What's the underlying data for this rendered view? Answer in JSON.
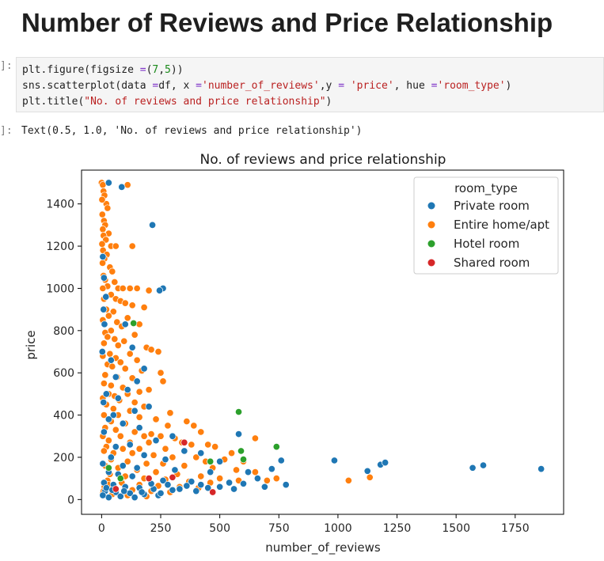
{
  "page": {
    "heading": "Number of Reviews and Price Relationship",
    "code_prompt": "]:",
    "output_prompt": "]:",
    "code_lines": [
      [
        [
          "plt",
          "name"
        ],
        [
          ".",
          "name"
        ],
        [
          "figure",
          "name"
        ],
        [
          "(figsize ",
          "name"
        ],
        [
          "=",
          "kw"
        ],
        [
          "(",
          "name"
        ],
        [
          "7",
          "num"
        ],
        [
          ",",
          "name"
        ],
        [
          "5",
          "num"
        ],
        [
          "))",
          "name"
        ]
      ],
      [
        [
          "sns",
          "name"
        ],
        [
          ".",
          "name"
        ],
        [
          "scatterplot",
          "name"
        ],
        [
          "(data ",
          "name"
        ],
        [
          "=",
          "kw"
        ],
        [
          "df, x ",
          "name"
        ],
        [
          "=",
          "kw"
        ],
        [
          "'number_of_reviews'",
          "str"
        ],
        [
          ",y ",
          "name"
        ],
        [
          "=",
          "kw"
        ],
        [
          " ",
          "name"
        ],
        [
          "'price'",
          "str"
        ],
        [
          ", hue ",
          "name"
        ],
        [
          "=",
          "kw"
        ],
        [
          "'room_type'",
          "str"
        ],
        [
          ")",
          "name"
        ]
      ],
      [
        [
          "plt",
          "name"
        ],
        [
          ".",
          "name"
        ],
        [
          "title",
          "name"
        ],
        [
          "(",
          "name"
        ],
        [
          "\"No. of reviews and price relationship\"",
          "str"
        ],
        [
          ")",
          "name"
        ]
      ]
    ],
    "output_text": "Text(0.5, 1.0, 'No. of reviews and price relationship')"
  },
  "chart_data": {
    "type": "scatter",
    "title": "No. of reviews and price relationship",
    "xlabel": "number_of_reviews",
    "ylabel": "price",
    "xlim": [
      -85,
      1955
    ],
    "ylim": [
      -70,
      1560
    ],
    "xticks": [
      0,
      250,
      500,
      750,
      1000,
      1250,
      1500,
      1750
    ],
    "yticks": [
      0,
      200,
      400,
      600,
      800,
      1000,
      1200,
      1400
    ],
    "grid": false,
    "legend": {
      "title": "room_type",
      "placement": "top-right",
      "entries": [
        "Private room",
        "Entire home/apt",
        "Hotel room",
        "Shared room"
      ]
    },
    "colors": {
      "Private room": "#1f77b4",
      "Entire home/apt": "#ff7f0e",
      "Hotel room": "#2ca02c",
      "Shared room": "#d62728"
    },
    "series": [
      {
        "name": "Entire home/apt",
        "points": [
          [
            0,
            1500
          ],
          [
            5,
            1490
          ],
          [
            8,
            1460
          ],
          [
            12,
            1440
          ],
          [
            20,
            1400
          ],
          [
            2,
            1420
          ],
          [
            25,
            1380
          ],
          [
            3,
            1350
          ],
          [
            10,
            1320
          ],
          [
            15,
            1300
          ],
          [
            5,
            1280
          ],
          [
            30,
            1260
          ],
          [
            8,
            1250
          ],
          [
            18,
            1230
          ],
          [
            2,
            1210
          ],
          [
            40,
            1200
          ],
          [
            60,
            1200
          ],
          [
            130,
            1200
          ],
          [
            110,
            1490
          ],
          [
            6,
            1180
          ],
          [
            22,
            1160
          ],
          [
            12,
            1140
          ],
          [
            4,
            1120
          ],
          [
            35,
            1100
          ],
          [
            45,
            1080
          ],
          [
            8,
            1060
          ],
          [
            15,
            1040
          ],
          [
            55,
            1030
          ],
          [
            25,
            1010
          ],
          [
            5,
            1000
          ],
          [
            70,
            1000
          ],
          [
            90,
            1000
          ],
          [
            120,
            1000
          ],
          [
            150,
            1000
          ],
          [
            200,
            990
          ],
          [
            40,
            970
          ],
          [
            10,
            950
          ],
          [
            60,
            950
          ],
          [
            80,
            940
          ],
          [
            100,
            930
          ],
          [
            130,
            920
          ],
          [
            180,
            910
          ],
          [
            20,
            900
          ],
          [
            50,
            890
          ],
          [
            30,
            870
          ],
          [
            110,
            860
          ],
          [
            5,
            850
          ],
          [
            65,
            840
          ],
          [
            160,
            830
          ],
          [
            85,
            820
          ],
          [
            40,
            800
          ],
          [
            15,
            790
          ],
          [
            140,
            780
          ],
          [
            25,
            770
          ],
          [
            55,
            760
          ],
          [
            95,
            750
          ],
          [
            10,
            740
          ],
          [
            70,
            730
          ],
          [
            190,
            720
          ],
          [
            210,
            710
          ],
          [
            240,
            700
          ],
          [
            35,
            690
          ],
          [
            120,
            690
          ],
          [
            5,
            680
          ],
          [
            60,
            670
          ],
          [
            150,
            660
          ],
          [
            80,
            650
          ],
          [
            25,
            640
          ],
          [
            45,
            630
          ],
          [
            100,
            620
          ],
          [
            170,
            610
          ],
          [
            250,
            600
          ],
          [
            15,
            590
          ],
          [
            65,
            580
          ],
          [
            130,
            575
          ],
          [
            260,
            560
          ],
          [
            10,
            550
          ],
          [
            40,
            540
          ],
          [
            90,
            530
          ],
          [
            200,
            520
          ],
          [
            160,
            510
          ],
          [
            30,
            500
          ],
          [
            110,
            500
          ],
          [
            55,
            490
          ],
          [
            5,
            480
          ],
          [
            75,
            470
          ],
          [
            140,
            460
          ],
          [
            20,
            450
          ],
          [
            180,
            440
          ],
          [
            50,
            430
          ],
          [
            120,
            420
          ],
          [
            290,
            410
          ],
          [
            10,
            400
          ],
          [
            70,
            400
          ],
          [
            160,
            390
          ],
          [
            230,
            380
          ],
          [
            40,
            370
          ],
          [
            100,
            360
          ],
          [
            280,
            350
          ],
          [
            360,
            370
          ],
          [
            390,
            350
          ],
          [
            15,
            340
          ],
          [
            60,
            330
          ],
          [
            140,
            320
          ],
          [
            210,
            310
          ],
          [
            420,
            320
          ],
          [
            5,
            300
          ],
          [
            80,
            300
          ],
          [
            180,
            300
          ],
          [
            250,
            300
          ],
          [
            310,
            290
          ],
          [
            450,
            260
          ],
          [
            650,
            290
          ],
          [
            30,
            280
          ],
          [
            120,
            270
          ],
          [
            200,
            270
          ],
          [
            340,
            270
          ],
          [
            380,
            260
          ],
          [
            20,
            250
          ],
          [
            90,
            240
          ],
          [
            160,
            240
          ],
          [
            270,
            240
          ],
          [
            480,
            250
          ],
          [
            550,
            220
          ],
          [
            10,
            230
          ],
          [
            50,
            220
          ],
          [
            130,
            220
          ],
          [
            220,
            210
          ],
          [
            300,
            200
          ],
          [
            400,
            200
          ],
          [
            440,
            180
          ],
          [
            520,
            190
          ],
          [
            600,
            180
          ],
          [
            40,
            190
          ],
          [
            110,
            180
          ],
          [
            190,
            170
          ],
          [
            260,
            170
          ],
          [
            350,
            160
          ],
          [
            470,
            150
          ],
          [
            570,
            140
          ],
          [
            650,
            130
          ],
          [
            15,
            160
          ],
          [
            70,
            150
          ],
          [
            150,
            140
          ],
          [
            230,
            130
          ],
          [
            320,
            120
          ],
          [
            420,
            110
          ],
          [
            500,
            100
          ],
          [
            580,
            90
          ],
          [
            700,
            90
          ],
          [
            740,
            100
          ],
          [
            1045,
            90
          ],
          [
            1135,
            105
          ],
          [
            35,
            120
          ],
          [
            100,
            110
          ],
          [
            180,
            100
          ],
          [
            270,
            95
          ],
          [
            370,
            85
          ],
          [
            460,
            80
          ],
          [
            25,
            90
          ],
          [
            85,
            80
          ],
          [
            160,
            70
          ],
          [
            240,
            65
          ],
          [
            330,
            60
          ],
          [
            410,
            55
          ],
          [
            12,
            60
          ],
          [
            60,
            50
          ],
          [
            130,
            45
          ],
          [
            210,
            40
          ],
          [
            290,
            35
          ],
          [
            5,
            30
          ],
          [
            45,
            25
          ],
          [
            110,
            20
          ],
          [
            190,
            15
          ],
          [
            8,
            40
          ],
          [
            28,
            70
          ]
        ]
      },
      {
        "name": "Private room",
        "points": [
          [
            30,
            1500
          ],
          [
            85,
            1480
          ],
          [
            215,
            1300
          ],
          [
            260,
            1000
          ],
          [
            245,
            990
          ],
          [
            5,
            1150
          ],
          [
            10,
            1050
          ],
          [
            18,
            960
          ],
          [
            8,
            900
          ],
          [
            12,
            830
          ],
          [
            100,
            830
          ],
          [
            130,
            720
          ],
          [
            3,
            700
          ],
          [
            40,
            660
          ],
          [
            180,
            620
          ],
          [
            60,
            580
          ],
          [
            150,
            560
          ],
          [
            110,
            520
          ],
          [
            20,
            500
          ],
          [
            70,
            480
          ],
          [
            8,
            460
          ],
          [
            200,
            440
          ],
          [
            140,
            420
          ],
          [
            50,
            400
          ],
          [
            30,
            380
          ],
          [
            90,
            360
          ],
          [
            160,
            340
          ],
          [
            10,
            320
          ],
          [
            300,
            300
          ],
          [
            230,
            280
          ],
          [
            580,
            310
          ],
          [
            120,
            260
          ],
          [
            60,
            250
          ],
          [
            350,
            230
          ],
          [
            420,
            220
          ],
          [
            180,
            210
          ],
          [
            40,
            200
          ],
          [
            270,
            190
          ],
          [
            500,
            180
          ],
          [
            760,
            185
          ],
          [
            985,
            185
          ],
          [
            1180,
            165
          ],
          [
            1200,
            175
          ],
          [
            5,
            170
          ],
          [
            90,
            160
          ],
          [
            150,
            150
          ],
          [
            310,
            140
          ],
          [
            460,
            130
          ],
          [
            620,
            130
          ],
          [
            660,
            100
          ],
          [
            720,
            145
          ],
          [
            1125,
            135
          ],
          [
            1570,
            150
          ],
          [
            1615,
            162
          ],
          [
            1860,
            145
          ],
          [
            30,
            130
          ],
          [
            70,
            120
          ],
          [
            130,
            110
          ],
          [
            200,
            100
          ],
          [
            260,
            90
          ],
          [
            380,
            85
          ],
          [
            540,
            80
          ],
          [
            600,
            75
          ],
          [
            690,
            60
          ],
          [
            780,
            70
          ],
          [
            10,
            80
          ],
          [
            50,
            70
          ],
          [
            100,
            60
          ],
          [
            160,
            55
          ],
          [
            220,
            50
          ],
          [
            300,
            45
          ],
          [
            400,
            40
          ],
          [
            500,
            60
          ],
          [
            15,
            40
          ],
          [
            60,
            35
          ],
          [
            120,
            30
          ],
          [
            180,
            25
          ],
          [
            240,
            20
          ],
          [
            80,
            15
          ],
          [
            30,
            10
          ],
          [
            140,
            10
          ],
          [
            5,
            20
          ],
          [
            20,
            55
          ],
          [
            45,
            45
          ],
          [
            95,
            40
          ],
          [
            170,
            35
          ],
          [
            250,
            30
          ],
          [
            330,
            50
          ],
          [
            450,
            55
          ],
          [
            560,
            50
          ],
          [
            420,
            70
          ],
          [
            360,
            65
          ],
          [
            280,
            70
          ],
          [
            210,
            75
          ]
        ]
      },
      {
        "name": "Hotel room",
        "points": [
          [
            135,
            835
          ],
          [
            580,
            415
          ],
          [
            740,
            250
          ],
          [
            590,
            230
          ],
          [
            600,
            190
          ],
          [
            460,
            180
          ],
          [
            30,
            150
          ],
          [
            80,
            100
          ]
        ]
      },
      {
        "name": "Shared room",
        "points": [
          [
            350,
            270
          ],
          [
            200,
            100
          ],
          [
            300,
            105
          ],
          [
            470,
            35
          ],
          [
            60,
            50
          ]
        ]
      }
    ]
  }
}
